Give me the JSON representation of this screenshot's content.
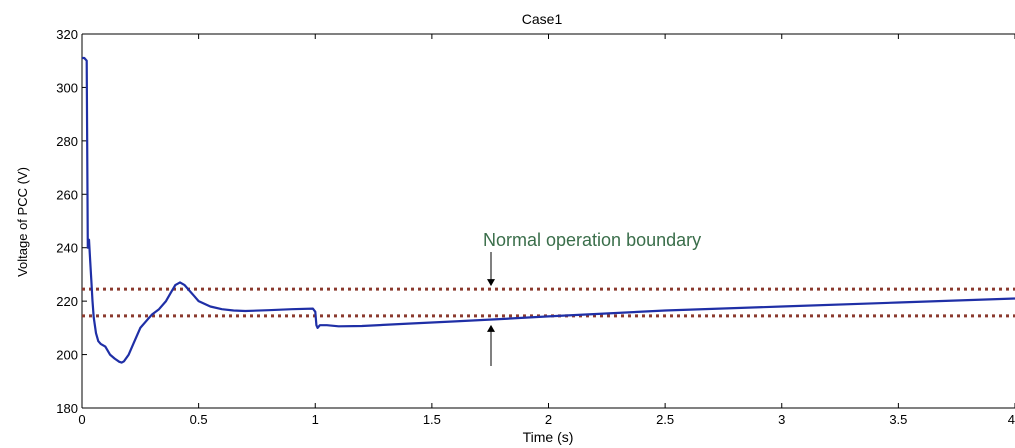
{
  "chart_data": {
    "type": "line",
    "title": "Case1",
    "xlabel": "Time (s)",
    "ylabel": "Voltage of PCC (V)",
    "xlim": [
      0,
      4
    ],
    "ylim": [
      180,
      320
    ],
    "x_ticks": [
      "0",
      "0.5",
      "1",
      "1.5",
      "2",
      "2.5",
      "3",
      "3.5",
      "4"
    ],
    "y_ticks": [
      "180",
      "200",
      "220",
      "240",
      "260",
      "280",
      "300",
      "320"
    ],
    "grid": false,
    "series": [
      {
        "color": "#1f2fa6",
        "x": [
          0.0,
          0.01,
          0.02,
          0.025,
          0.03,
          0.035,
          0.04,
          0.045,
          0.05,
          0.06,
          0.07,
          0.08,
          0.1,
          0.12,
          0.14,
          0.16,
          0.17,
          0.18,
          0.2,
          0.22,
          0.25,
          0.28,
          0.3,
          0.33,
          0.36,
          0.38,
          0.4,
          0.42,
          0.44,
          0.46,
          0.48,
          0.5,
          0.55,
          0.6,
          0.65,
          0.7,
          0.8,
          0.9,
          0.99,
          1.0,
          1.005,
          1.01,
          1.02,
          1.05,
          1.1,
          1.2,
          1.4,
          1.6,
          1.8,
          2.0,
          2.5,
          3.0,
          3.5,
          4.0
        ],
        "values": [
          311,
          311,
          310,
          240,
          243,
          235,
          228,
          220,
          214,
          208,
          205,
          204,
          203,
          200,
          198.5,
          197.3,
          197,
          197.5,
          200,
          204,
          210,
          213,
          215,
          217,
          220,
          223,
          226,
          227,
          226,
          224,
          222,
          220,
          218,
          217,
          216.5,
          216.3,
          216.6,
          217,
          217.2,
          216,
          211,
          210,
          211,
          211,
          210.6,
          210.7,
          211.6,
          212.4,
          213.3,
          214.3,
          216.5,
          218,
          219.5,
          221
        ]
      }
    ],
    "reference_lines": [
      {
        "y": 224.5,
        "color": "#8b3a2e",
        "style": "dotted"
      },
      {
        "y": 214.5,
        "color": "#8b3a2e",
        "style": "dotted"
      }
    ],
    "annotations": [
      {
        "text": "Normal operation boundary",
        "color": "#3a6e4a"
      }
    ]
  }
}
